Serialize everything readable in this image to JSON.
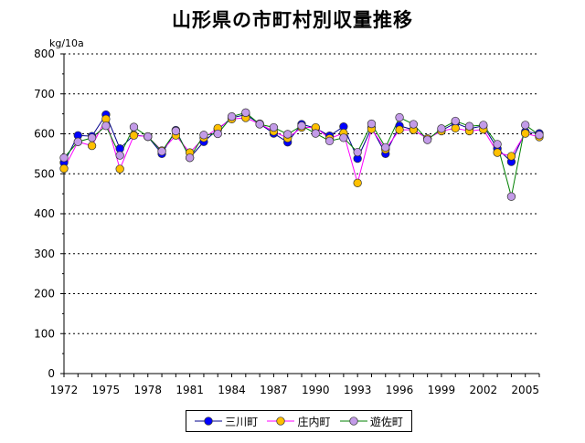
{
  "chart_data": {
    "type": "line",
    "title": "山形県の市町村別収量推移",
    "ylabel": "kg/10a",
    "ylim": [
      0,
      800
    ],
    "yticks": [
      0,
      100,
      200,
      300,
      400,
      500,
      600,
      700,
      800
    ],
    "xticks": [
      1972,
      1975,
      1978,
      1981,
      1984,
      1987,
      1990,
      1993,
      1996,
      1999,
      2002,
      2005
    ],
    "x": [
      1972,
      1973,
      1974,
      1975,
      1976,
      1977,
      1978,
      1979,
      1980,
      1981,
      1982,
      1983,
      1984,
      1985,
      1986,
      1987,
      1988,
      1989,
      1990,
      1991,
      1992,
      1993,
      1994,
      1995,
      1996,
      1997,
      1998,
      1999,
      2000,
      2001,
      2002,
      2003,
      2004,
      2005,
      2006
    ],
    "grid": true,
    "legend_position": "bottom",
    "series": [
      {
        "name": "三川町",
        "color": "#0000ff",
        "line_color": "#00008b",
        "values": [
          528,
          596,
          594,
          648,
          563,
          597,
          593,
          550,
          609,
          540,
          580,
          611,
          640,
          648,
          625,
          601,
          579,
          624,
          614,
          595,
          618,
          538,
          615,
          550,
          620,
          610,
          588,
          608,
          627,
          613,
          620,
          563,
          530,
          605,
          601
        ]
      },
      {
        "name": "庄内町",
        "color": "#ffc000",
        "line_color": "#ff00ff",
        "values": [
          513,
          580,
          570,
          637,
          512,
          596,
          593,
          558,
          596,
          553,
          590,
          614,
          637,
          640,
          625,
          606,
          589,
          616,
          616,
          588,
          602,
          477,
          612,
          561,
          610,
          610,
          588,
          607,
          614,
          607,
          611,
          553,
          544,
          601,
          592
        ]
      },
      {
        "name": "遊佐町",
        "color": "#c39be8",
        "line_color": "#008000",
        "values": [
          540,
          580,
          590,
          620,
          546,
          617,
          593,
          556,
          607,
          540,
          597,
          600,
          643,
          653,
          624,
          616,
          599,
          620,
          601,
          582,
          590,
          554,
          625,
          566,
          641,
          624,
          585,
          613,
          632,
          619,
          622,
          574,
          443,
          622,
          597
        ]
      }
    ]
  }
}
